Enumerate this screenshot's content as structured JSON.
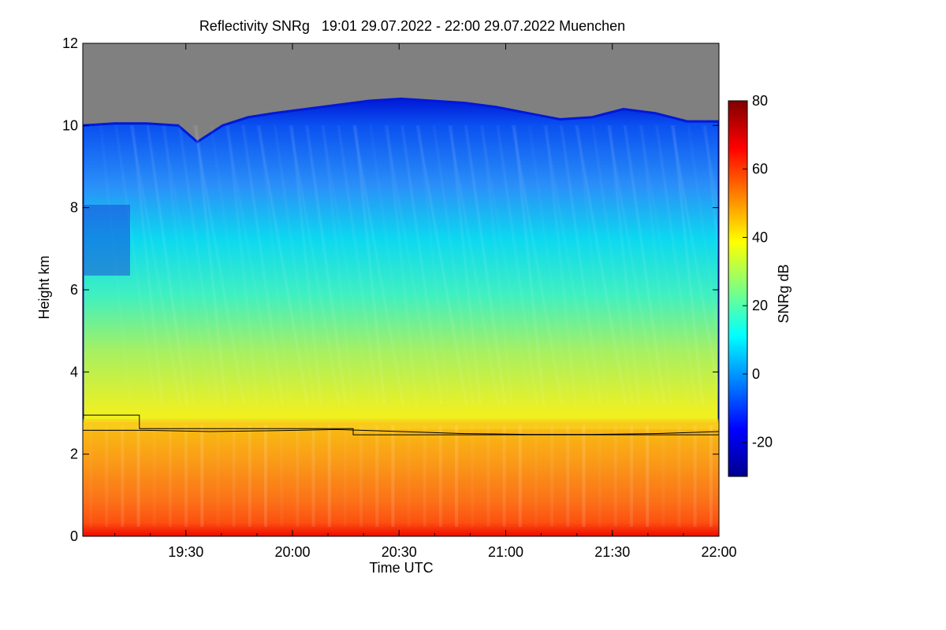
{
  "chart_data": {
    "type": "heatmap",
    "title": "Reflectivity SNRg   19:01 29.07.2022 - 22:00 29.07.2022 Muenchen",
    "xlabel": "Time UTC",
    "ylabel": "Height km",
    "x_range": [
      "19:01",
      "22:00"
    ],
    "x_ticks": [
      "19:30",
      "20:00",
      "20:30",
      "21:00",
      "21:30",
      "22:00"
    ],
    "ylim": [
      0,
      12
    ],
    "y_ticks": [
      0,
      2,
      4,
      6,
      8,
      10,
      12
    ],
    "colorbar": {
      "label": "SNRg dB",
      "range": [
        -30,
        80
      ],
      "ticks": [
        -20,
        0,
        20,
        40,
        60,
        80
      ],
      "colormap": "jet"
    },
    "no_data_color": "#808080",
    "line_color": "#000000",
    "echo_top_km": [
      [
        0,
        10.0
      ],
      [
        0.05,
        10.05
      ],
      [
        0.1,
        10.05
      ],
      [
        0.15,
        10.0
      ],
      [
        0.18,
        9.6
      ],
      [
        0.22,
        10.0
      ],
      [
        0.26,
        10.2
      ],
      [
        0.3,
        10.3
      ],
      [
        0.35,
        10.4
      ],
      [
        0.4,
        10.5
      ],
      [
        0.45,
        10.6
      ],
      [
        0.5,
        10.65
      ],
      [
        0.55,
        10.6
      ],
      [
        0.6,
        10.55
      ],
      [
        0.65,
        10.45
      ],
      [
        0.7,
        10.3
      ],
      [
        0.75,
        10.15
      ],
      [
        0.8,
        10.2
      ],
      [
        0.85,
        10.4
      ],
      [
        0.9,
        10.3
      ],
      [
        0.95,
        10.1
      ],
      [
        1.0,
        10.1
      ]
    ],
    "melting_layer_km": [
      [
        0,
        2.58
      ],
      [
        0.1,
        2.58
      ],
      [
        0.2,
        2.55
      ],
      [
        0.3,
        2.57
      ],
      [
        0.4,
        2.6
      ],
      [
        0.5,
        2.55
      ],
      [
        0.6,
        2.5
      ],
      [
        0.7,
        2.48
      ],
      [
        0.8,
        2.48
      ],
      [
        0.9,
        2.5
      ],
      [
        1.0,
        2.55
      ]
    ],
    "freezing_level_km": [
      [
        0,
        2.95
      ],
      [
        0.089,
        2.95
      ],
      [
        0.089,
        2.62
      ],
      [
        0.425,
        2.62
      ],
      [
        0.425,
        2.47
      ],
      [
        1.0,
        2.47
      ]
    ]
  }
}
